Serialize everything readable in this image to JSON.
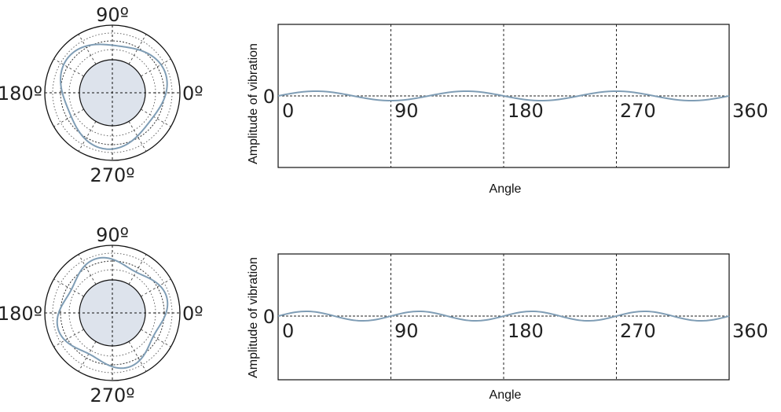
{
  "colors": {
    "curve": "#7f9db5",
    "hub": "#dde3ec",
    "frame": "#111111",
    "dashed": "#222222"
  },
  "panels": [
    {
      "polar": {
        "label_top": "90º",
        "label_left": "180º",
        "label_right": "0º",
        "label_bottom": "270º",
        "lobes": 3
      },
      "chart": {
        "type": "line",
        "ylabel": "Amplitude of vibration",
        "xlabel": "Angle",
        "zero_label": "0",
        "x_ticks": [
          "0",
          "90",
          "180",
          "270",
          "360"
        ],
        "xlim": [
          0,
          360
        ],
        "cycles": 3
      }
    },
    {
      "polar": {
        "label_top": "90º",
        "label_left": "180º",
        "label_right": "0º",
        "label_bottom": "270º",
        "lobes": 4
      },
      "chart": {
        "type": "line",
        "ylabel": "Amplitude of vibration",
        "xlabel": "Angle",
        "zero_label": "0",
        "x_ticks": [
          "0",
          "90",
          "180",
          "270",
          "360"
        ],
        "xlim": [
          0,
          360
        ],
        "cycles": 4
      }
    }
  ],
  "chart_data": [
    {
      "type": "line",
      "xlabel": "Angle",
      "ylabel": "Amplitude of vibration",
      "xlim": [
        0,
        360
      ],
      "x_ticks": [
        0,
        90,
        180,
        270,
        360
      ],
      "cycles": 3
    },
    {
      "type": "line",
      "xlabel": "Angle",
      "ylabel": "Amplitude of vibration",
      "xlim": [
        0,
        360
      ],
      "x_ticks": [
        0,
        90,
        180,
        270,
        360
      ],
      "cycles": 4
    }
  ]
}
